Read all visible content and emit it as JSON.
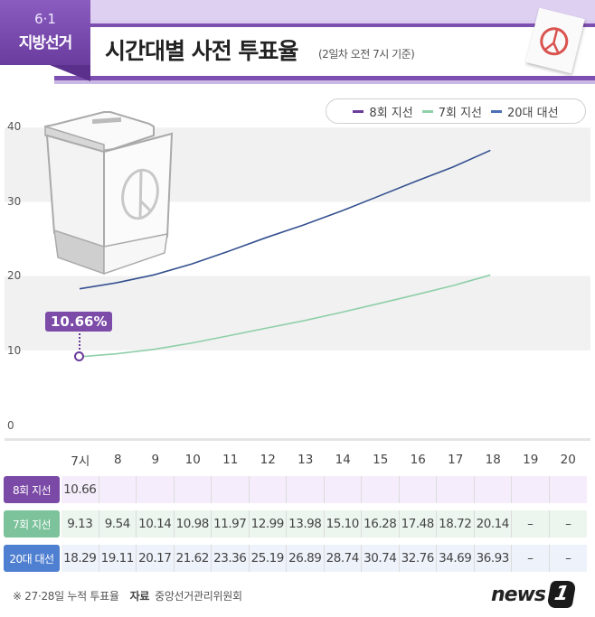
{
  "header": {
    "badge_date": "6·1",
    "badge_title": "지방선거",
    "title": "시간대별 사전 투표율",
    "subtitle": "(2일차 오전 7시 기준)"
  },
  "legend": [
    {
      "label": "8회 지선",
      "color": "#6b3d9a"
    },
    {
      "label": "7회 지선",
      "color": "#8ecfa8"
    },
    {
      "label": "20대 대선",
      "color": "#4a6fb5"
    }
  ],
  "callout": {
    "label": "10.66%"
  },
  "chart_data": {
    "type": "line",
    "title": "시간대별 사전 투표율",
    "subtitle": "(2일차 오전 7시 기준)",
    "xlabel": "",
    "ylabel": "",
    "categories": [
      "7시",
      "8",
      "9",
      "10",
      "11",
      "12",
      "13",
      "14",
      "15",
      "16",
      "17",
      "18",
      "19",
      "20"
    ],
    "ylim": [
      0,
      40
    ],
    "yticks": [
      0,
      10,
      20,
      30,
      40
    ],
    "grid_bands": [
      [
        10,
        20
      ],
      [
        30,
        40
      ]
    ],
    "legend_position": "top-right",
    "series": [
      {
        "name": "8회 지선",
        "color": "#6b3d9a",
        "values": [
          10.66,
          null,
          null,
          null,
          null,
          null,
          null,
          null,
          null,
          null,
          null,
          null,
          null,
          null
        ]
      },
      {
        "name": "7회 지선",
        "color": "#8ecfa8",
        "values": [
          9.13,
          9.54,
          10.14,
          10.98,
          11.97,
          12.99,
          13.98,
          15.1,
          16.28,
          17.48,
          18.72,
          20.14,
          null,
          null
        ]
      },
      {
        "name": "20대 대선",
        "color": "#34508f",
        "values": [
          18.29,
          19.11,
          20.17,
          21.62,
          23.36,
          25.19,
          26.89,
          28.74,
          30.74,
          32.76,
          34.69,
          36.93,
          null,
          null
        ]
      }
    ],
    "annotations": [
      {
        "x": "7시",
        "series": "8회 지선",
        "text": "10.66%"
      }
    ]
  },
  "axis": {
    "yticks": [
      "40",
      "30",
      "20",
      "10",
      "0"
    ]
  },
  "table": {
    "columns": [
      "7시",
      "8",
      "9",
      "10",
      "11",
      "12",
      "13",
      "14",
      "15",
      "16",
      "17",
      "18",
      "19",
      "20"
    ],
    "rows": [
      {
        "label": "8회 지선",
        "label_bg": "#7b49a6",
        "row_bg": "#f5edfb",
        "values": [
          "10.66",
          "",
          "",
          "",
          "",
          "",
          "",
          "",
          "",
          "",
          "",
          "",
          "",
          ""
        ]
      },
      {
        "label": "7회 지선",
        "label_bg": "#7cc29b",
        "row_bg": "#ecf6ee",
        "values": [
          "9.13",
          "9.54",
          "10.14",
          "10.98",
          "11.97",
          "12.99",
          "13.98",
          "15.10",
          "16.28",
          "17.48",
          "18.72",
          "20.14",
          "–",
          "–"
        ]
      },
      {
        "label": "20대 대선",
        "label_bg": "#4f7fd0",
        "row_bg": "#eef2fa",
        "values": [
          "18.29",
          "19.11",
          "20.17",
          "21.62",
          "23.36",
          "25.19",
          "26.89",
          "28.74",
          "30.74",
          "32.76",
          "34.69",
          "36.93",
          "–",
          "–"
        ]
      }
    ]
  },
  "footer": {
    "note": "※ 27·28일 누적 투표율",
    "source_label": "자료",
    "source": "중앙선거관리위원회",
    "logo_text": "news",
    "logo_mark": "1"
  }
}
